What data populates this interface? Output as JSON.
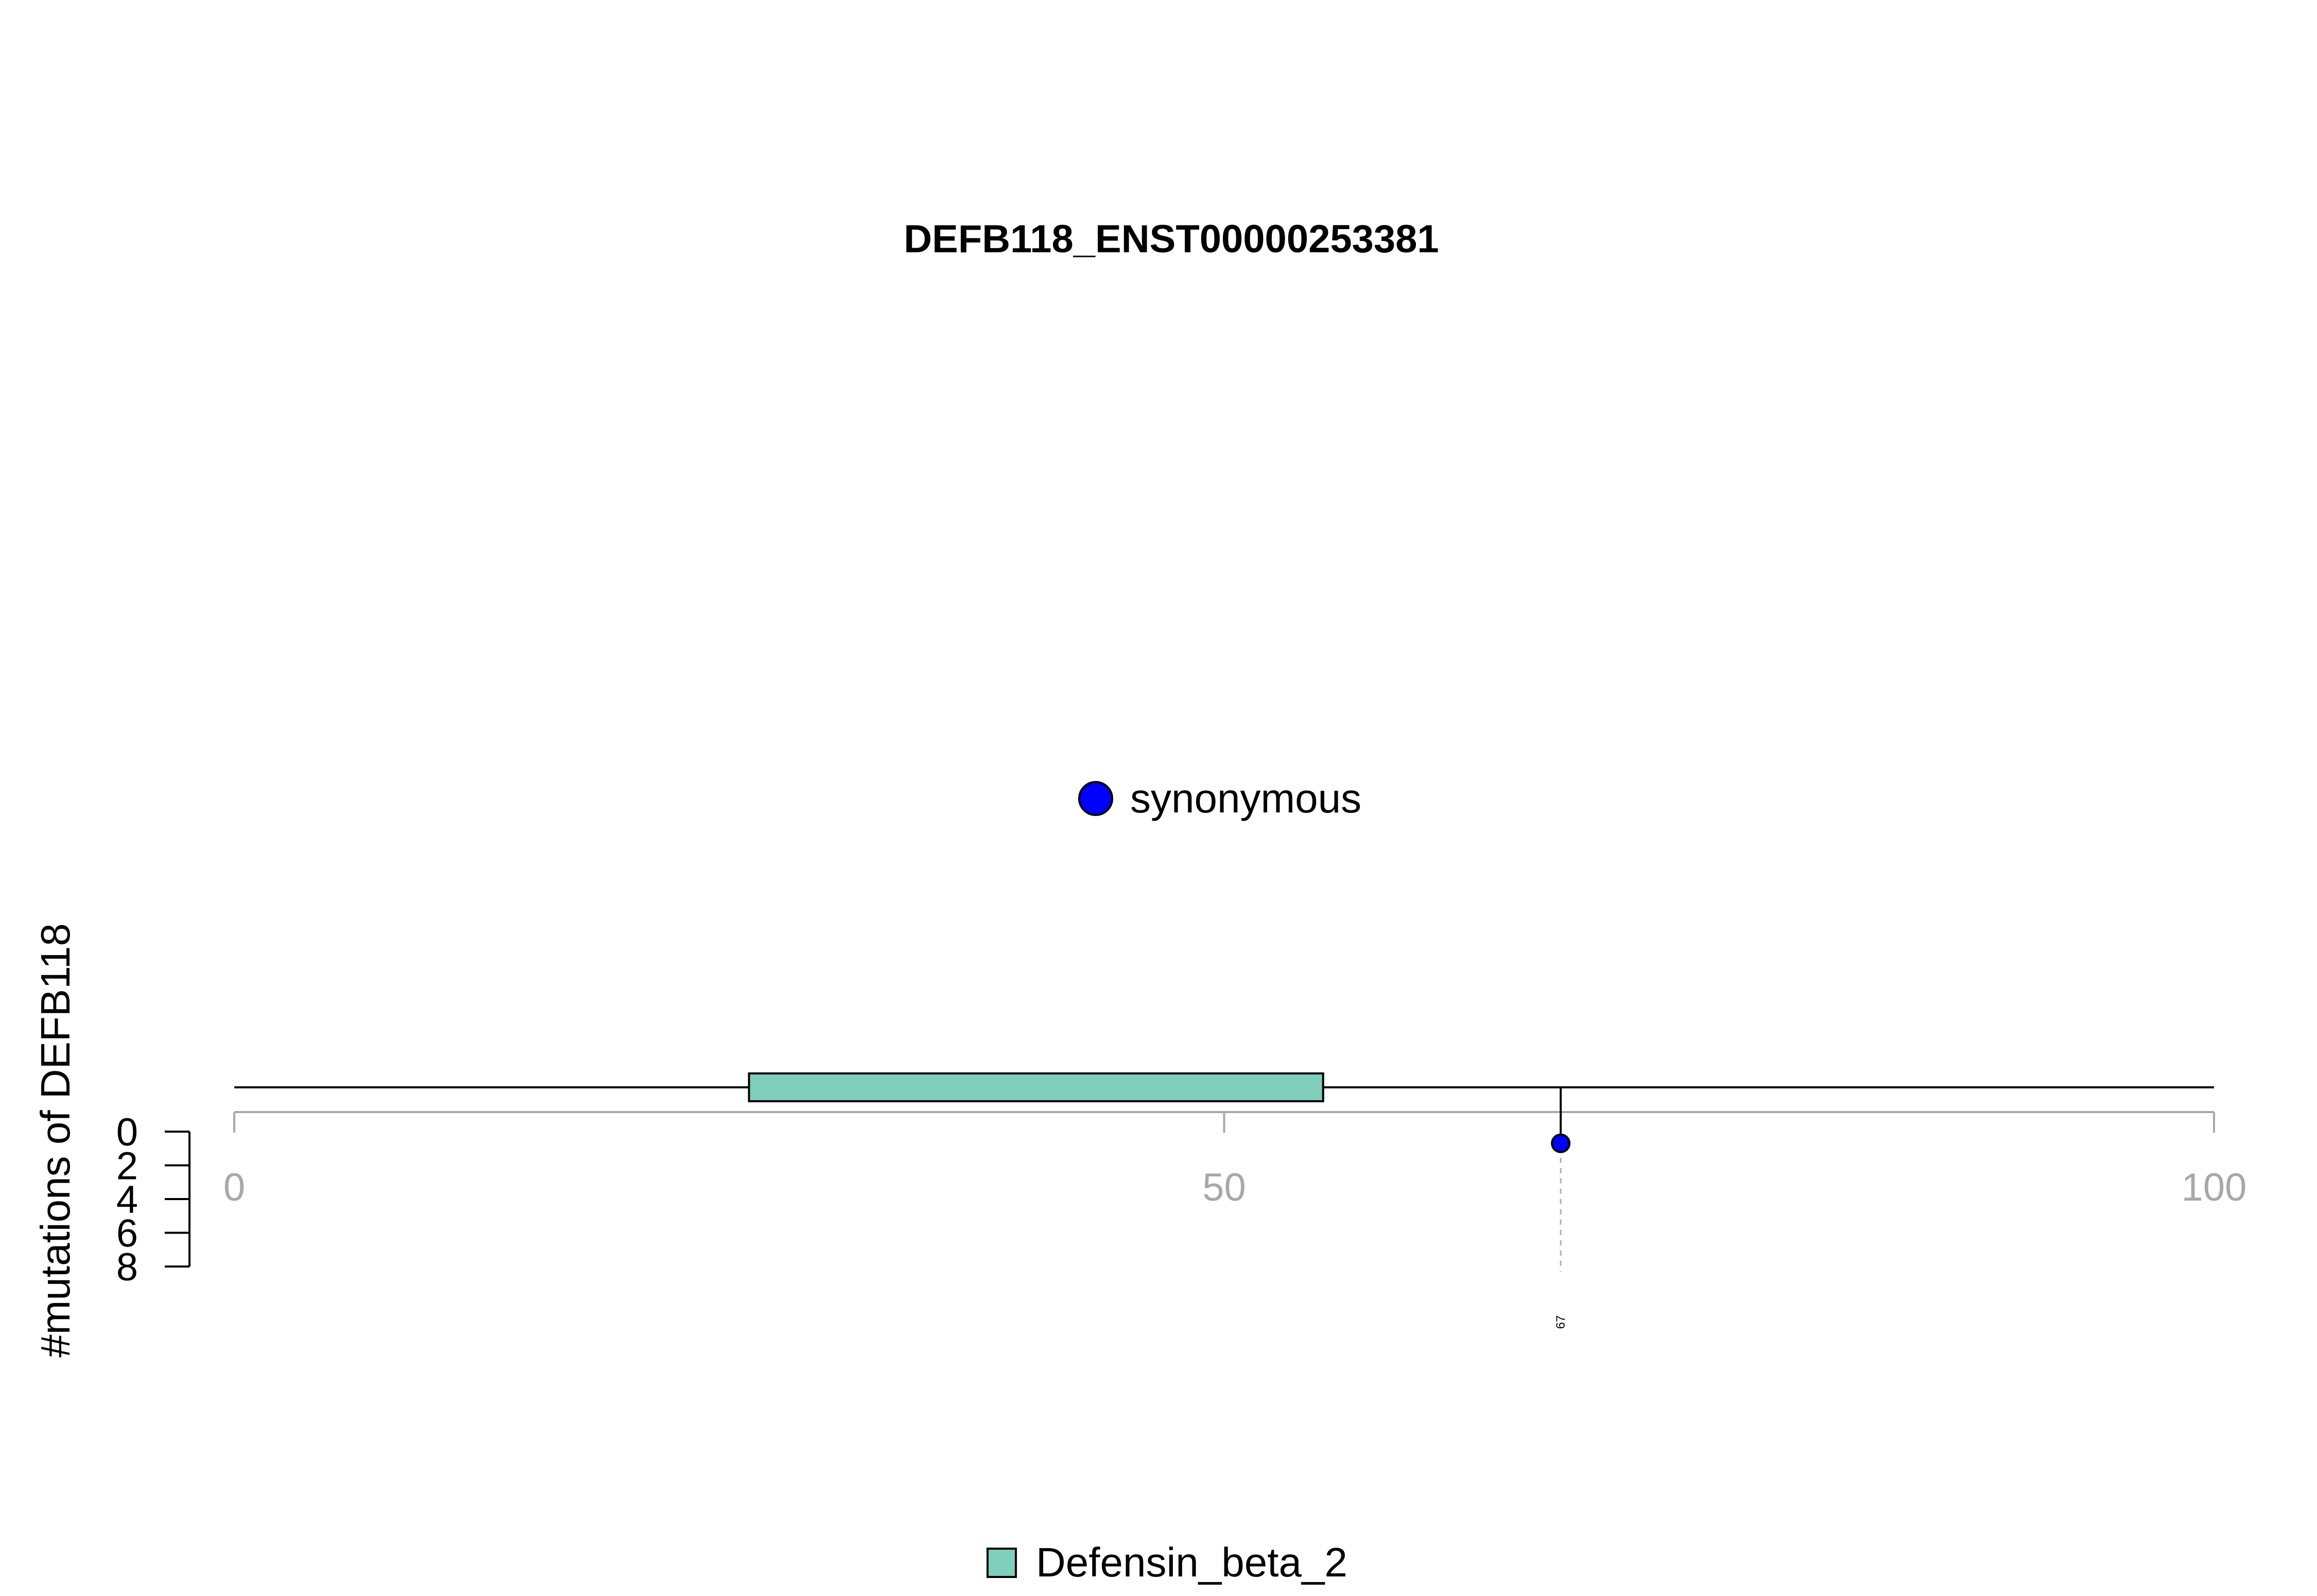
{
  "chart_data": {
    "type": "lollipop",
    "title": "DEFB118_ENST00000253381",
    "ylabel": "#mutations of DEFB118",
    "xlim": [
      0,
      100
    ],
    "x_ticks": [
      "0",
      "50",
      "100"
    ],
    "ylim": [
      0,
      8
    ],
    "y_ticks": [
      "0",
      "2",
      "4",
      "6",
      "8"
    ],
    "domains": [
      {
        "name": "Defensin_beta_2",
        "start": 26,
        "end": 55,
        "color": "#7fcdbb"
      }
    ],
    "mutations": [
      {
        "position": 67,
        "count": 1,
        "type": "synonymous",
        "label": "67",
        "color": "#0000ff"
      }
    ],
    "legend_top": [
      {
        "label": "synonymous",
        "color": "#0000ff"
      }
    ],
    "legend_bottom": [
      {
        "label": "Defensin_beta_2",
        "color": "#7fcdbb"
      }
    ]
  }
}
